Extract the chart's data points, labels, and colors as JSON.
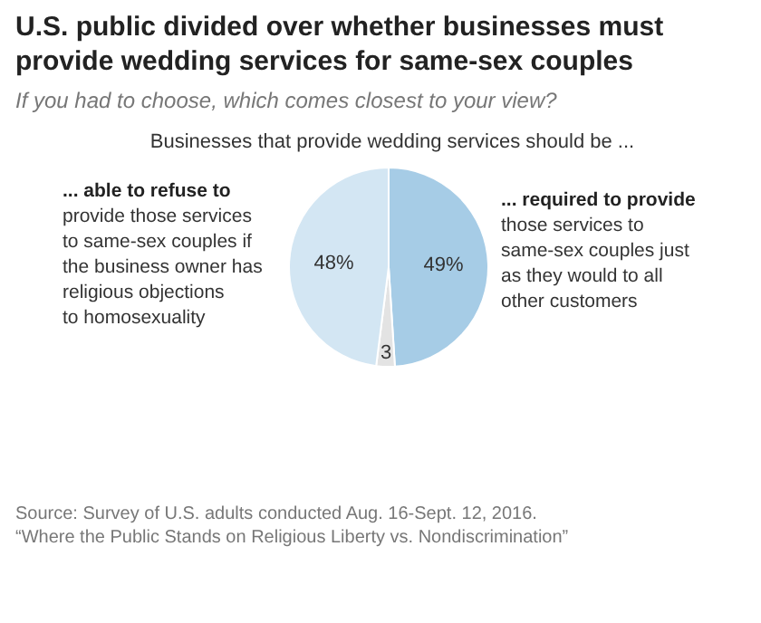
{
  "chart_data": {
    "type": "pie",
    "title": "U.S. public divided over whether businesses must provide wedding services for same-sex couples",
    "subtitle": "If you had to choose, which comes closest to your view?",
    "categories": [
      "... required to provide",
      null,
      "... able to refuse to"
    ],
    "values": [
      49,
      3,
      48
    ],
    "colors": [
      "#a6cce6",
      "#e3e3e3",
      "#d3e6f3"
    ],
    "value_labels": [
      "49%",
      "3",
      "48%"
    ],
    "annotations": [
      "Businesses that provide wedding services should be ...",
      "those services to same-sex couples just as they would to all other customers",
      "provide those services to same-sex couples if the business owner has religious objections to homosexuality",
      "Source: Survey of U.S. adults conducted Aug. 16-Sept. 12, 2016.",
      "“Where the Public Stands on Religious Liberty vs. Nondiscrimination”"
    ]
  }
}
